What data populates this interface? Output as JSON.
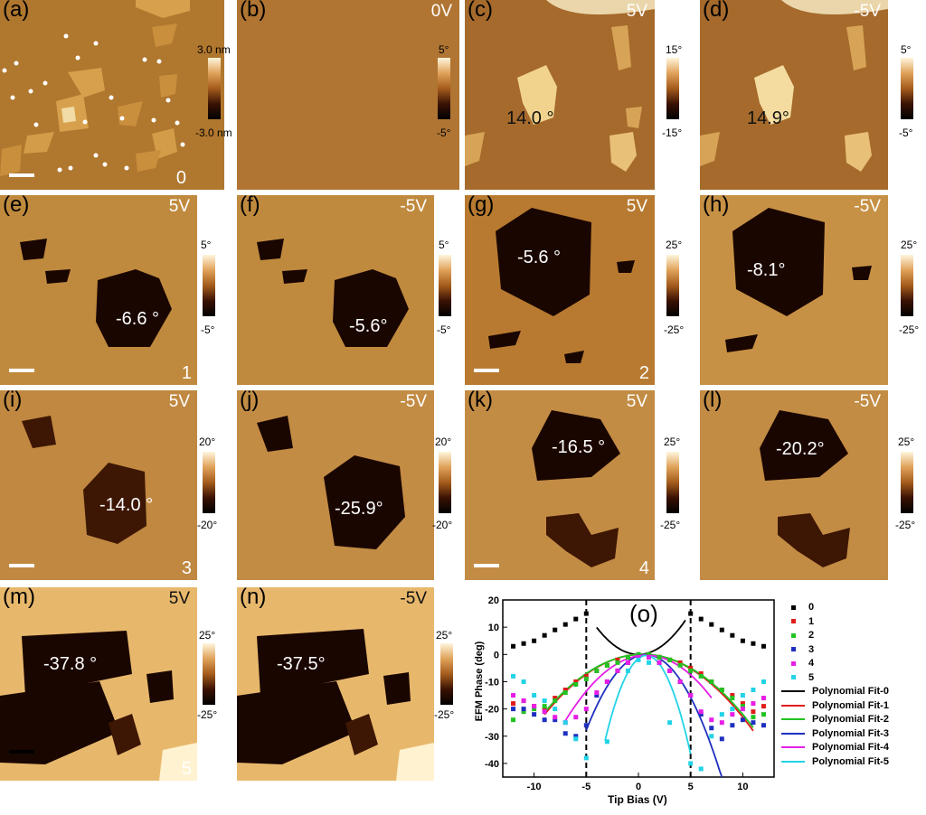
{
  "panels": [
    {
      "id": "a",
      "label": "(a)",
      "index": "0"
    },
    {
      "id": "b",
      "label": "(b)",
      "bias": "0V"
    },
    {
      "id": "c",
      "label": "(c)",
      "bias": "5V",
      "phase": "14.0 °"
    },
    {
      "id": "d",
      "label": "(d)",
      "bias": "-5V",
      "phase": "14.9°"
    },
    {
      "id": "e",
      "label": "(e)",
      "bias": "5V",
      "phase": "-6.6 °",
      "index": "1"
    },
    {
      "id": "f",
      "label": "(f)",
      "bias": "-5V",
      "phase": "-5.6°"
    },
    {
      "id": "g",
      "label": "(g)",
      "bias": "5V",
      "phase": "-5.6 °",
      "index": "2"
    },
    {
      "id": "h",
      "label": "(h)",
      "bias": "-5V",
      "phase": "-8.1°"
    },
    {
      "id": "i",
      "label": "(i)",
      "bias": "5V",
      "phase": "-14.0 °",
      "index": "3"
    },
    {
      "id": "j",
      "label": "(j)",
      "bias": "-5V",
      "phase": "-25.9°"
    },
    {
      "id": "k",
      "label": "(k)",
      "bias": "5V",
      "phase": "-16.5 °",
      "index": "4"
    },
    {
      "id": "l",
      "label": "(l)",
      "bias": "-5V",
      "phase": "-20.2°"
    },
    {
      "id": "m",
      "label": "(m)",
      "bias": "5V",
      "phase": "-37.8 °",
      "index": "5"
    },
    {
      "id": "n",
      "label": "(n)",
      "bias": "-5V",
      "phase": "-37.5°"
    }
  ],
  "colorbars": [
    {
      "top": "3.0 nm",
      "bottom": "-3.0 nm"
    },
    {
      "top": "5°",
      "bottom": "-5°"
    },
    {
      "top": "15°",
      "bottom": "-15°"
    },
    {
      "top": "5°",
      "bottom": "-5°"
    },
    {
      "top": "5°",
      "bottom": "-5°"
    },
    {
      "top": "5°",
      "bottom": "-5°"
    },
    {
      "top": "25°",
      "bottom": "-25°"
    },
    {
      "top": "25°",
      "bottom": "-25°"
    },
    {
      "top": "20°",
      "bottom": "-20°"
    },
    {
      "top": "20°",
      "bottom": "-20°"
    },
    {
      "top": "25°",
      "bottom": "-25°"
    },
    {
      "top": "25°",
      "bottom": "-25°"
    }
  ],
  "colors": {
    "panel_mid": "#a86a2c",
    "flake_dark": "#1a0600",
    "flake_bright": "#f3d089"
  },
  "chart_data": {
    "type": "scatter",
    "title": "(o)",
    "xlabel": "Tip Bias (V)",
    "ylabel": "EFM Phase (deg)",
    "xlim": [
      -13,
      13
    ],
    "ylim": [
      -45,
      20
    ],
    "xticks": [
      "-10",
      "-5",
      "0",
      "5",
      "10"
    ],
    "yticks": [
      "20",
      "10",
      "0",
      "-10",
      "-20",
      "-30",
      "-40"
    ],
    "vlines": [
      -5,
      5
    ],
    "series": [
      {
        "name": "0",
        "color": "#000000",
        "x": [
          -12,
          -11,
          -10,
          -9,
          -8,
          -7,
          -6,
          -5,
          5,
          6,
          7,
          8,
          9,
          10,
          11,
          12
        ],
        "y": [
          3,
          4,
          5,
          7,
          9,
          11,
          13,
          15,
          15,
          13,
          11,
          9,
          7,
          5,
          4,
          3
        ]
      },
      {
        "name": "1",
        "color": "#e01b1b",
        "x": [
          -12,
          -11,
          -10,
          -9,
          -8,
          -7,
          -6,
          -5,
          -4,
          -3,
          -2,
          -1,
          0,
          1,
          2,
          3,
          4,
          5,
          6,
          7,
          8,
          9,
          10,
          11,
          12
        ],
        "y": [
          -18,
          -17,
          -19,
          -20,
          -16,
          -13,
          -10,
          -8,
          -6,
          -4,
          -2,
          -1,
          0,
          0,
          -1,
          -2,
          -3,
          -5,
          -7,
          -10,
          -13,
          -15,
          -18,
          -21,
          -19
        ]
      },
      {
        "name": "2",
        "color": "#22c322",
        "x": [
          -12,
          -11,
          -10,
          -9,
          -8,
          -7,
          -6,
          -5,
          -4,
          -3,
          -2,
          -1,
          0,
          1,
          2,
          3,
          4,
          5,
          6,
          7,
          8,
          9,
          10,
          11,
          12
        ],
        "y": [
          -24,
          -21,
          -20,
          -19,
          -17,
          -14,
          -11,
          -9,
          -6,
          -4,
          -3,
          -1,
          0,
          0,
          -1,
          -2,
          -4,
          -6,
          -8,
          -10,
          -13,
          -16,
          -19,
          -23,
          -22
        ]
      },
      {
        "name": "3",
        "color": "#1f2fbf",
        "x": [
          -12,
          -11,
          -10,
          -9,
          -8,
          -7,
          -6,
          -5,
          -4,
          -3,
          -2,
          -1,
          0,
          1,
          2,
          3,
          4,
          5,
          6,
          7,
          8,
          9,
          10,
          11,
          12
        ],
        "y": [
          -20,
          -20,
          -22,
          -24,
          -24,
          -29,
          -30,
          -26,
          -15,
          -10,
          -6,
          -3,
          -1,
          -1,
          -3,
          -6,
          -10,
          -15,
          -22,
          -27,
          -31,
          -26,
          -24,
          -25,
          -26
        ]
      },
      {
        "name": "4",
        "color": "#e61ee6",
        "x": [
          -12,
          -11,
          -10,
          -9,
          -8,
          -7,
          -6,
          -5,
          -4,
          -3,
          -2,
          -1,
          0,
          1,
          2,
          3,
          4,
          5,
          6,
          7,
          8,
          9,
          10,
          11,
          12
        ],
        "y": [
          -15,
          -17,
          -19,
          -21,
          -23,
          -25,
          -23,
          -20,
          -14,
          -10,
          -6,
          -3,
          -1,
          -1,
          -3,
          -6,
          -10,
          -15,
          -21,
          -24,
          -25,
          -22,
          -20,
          -18,
          -16
        ]
      },
      {
        "name": "5",
        "color": "#22d3e6",
        "x": [
          -12,
          -11,
          -10,
          -9,
          -8,
          -7,
          -6,
          -5,
          -3,
          -1,
          0,
          1,
          3,
          5,
          6,
          7,
          8,
          9,
          10,
          11,
          12
        ],
        "y": [
          -8,
          -10,
          -15,
          -17,
          -20,
          -25,
          -31,
          -38,
          -32,
          -6,
          -2,
          -3,
          -25,
          -40,
          -42,
          -30,
          -22,
          -20,
          -15,
          -13,
          -10
        ]
      }
    ],
    "fits": [
      {
        "name": "Polynomial Fit-0",
        "color": "#000000",
        "a": 0.62,
        "b": 0,
        "c": 0,
        "xmin": -4,
        "xmax": 4.5
      },
      {
        "name": "Polynomial Fit-1",
        "color": "#e01b1b",
        "a": -0.25,
        "b": 0.2,
        "c": 0,
        "xmin": -9,
        "xmax": 11
      },
      {
        "name": "Polynomial Fit-2",
        "color": "#22c322",
        "a": -0.24,
        "b": 0.2,
        "c": 0,
        "xmin": -9,
        "xmax": 11
      },
      {
        "name": "Polynomial Fit-3",
        "color": "#1f2fbf",
        "a": -0.85,
        "b": 1.2,
        "c": -0.5,
        "xmin": -5,
        "xmax": 8
      },
      {
        "name": "Polynomial Fit-4",
        "color": "#e61ee6",
        "a": -0.4,
        "b": 0.6,
        "c": -0.5,
        "xmin": -7,
        "xmax": 7
      },
      {
        "name": "Polynomial Fit-5",
        "color": "#22d3e6",
        "a": -2.0,
        "b": 3.0,
        "c": -1.5,
        "xmin": -3.2,
        "xmax": 5
      }
    ],
    "legend": "right"
  }
}
